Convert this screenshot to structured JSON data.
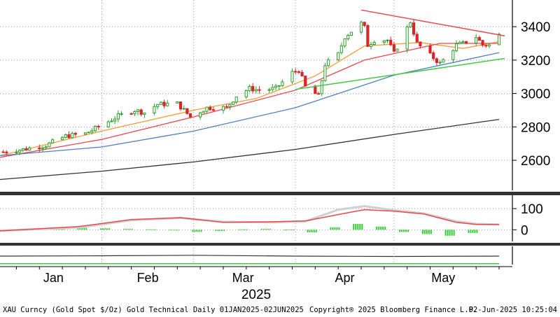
{
  "footer": {
    "source": "XAU Curncy (Gold Spot  $/Oz) Gold Technical  Daily 01JAN2025-02JUN2025",
    "copyright": "Copyright® 2025 Bloomberg Finance L.P.",
    "timestamp": "02-Jun-2025 10:25:04"
  },
  "colors": {
    "candle_up": "#2ca02c",
    "candle_down": "#d62728",
    "ma_fast": "#f39c34",
    "ma_mid": "#e8474f",
    "ma_slow": "#4d7fbf",
    "ma_long": "#333333",
    "trend_red": "#e8474f",
    "trend_green": "#41c84a",
    "macd_line": "#e8474f",
    "macd_signal": "#d0d0d0",
    "hist_green": "#33cc33",
    "panel_border": "#333333"
  },
  "chart_data": [
    {
      "type": "candlestick",
      "x_unit": "date",
      "x_labels": [
        "Jan",
        "Feb",
        "Mar",
        "Apr",
        "May"
      ],
      "x_year": "2025",
      "ylim": [
        2420,
        3560
      ],
      "y_ticks": [
        2600,
        2800,
        3000,
        3200,
        3400
      ],
      "grid": true,
      "y_axis_side": "right",
      "ohlc_anchor_closes": [
        [
          "2025-01-02",
          2650
        ],
        [
          "2025-01-08",
          2665
        ],
        [
          "2025-01-15",
          2690
        ],
        [
          "2025-01-21",
          2745
        ],
        [
          "2025-01-27",
          2760
        ],
        [
          "2025-01-31",
          2800
        ],
        [
          "2025-02-06",
          2865
        ],
        [
          "2025-02-11",
          2900
        ],
        [
          "2025-02-14",
          2885
        ],
        [
          "2025-02-18",
          2935
        ],
        [
          "2025-02-24",
          2940
        ],
        [
          "2025-02-28",
          2860
        ],
        [
          "2025-03-05",
          2915
        ],
        [
          "2025-03-11",
          2915
        ],
        [
          "2025-03-14",
          2985
        ],
        [
          "2025-03-18",
          3030
        ],
        [
          "2025-03-21",
          3020
        ],
        [
          "2025-03-26",
          3030
        ],
        [
          "2025-03-31",
          3125
        ],
        [
          "2025-04-02",
          3140
        ],
        [
          "2025-04-04",
          3040
        ],
        [
          "2025-04-08",
          2985
        ],
        [
          "2025-04-10",
          3175
        ],
        [
          "2025-04-14",
          3235
        ],
        [
          "2025-04-16",
          3340
        ],
        [
          "2025-04-21",
          3420
        ],
        [
          "2025-04-22",
          3395
        ],
        [
          "2025-04-23",
          3290
        ],
        [
          "2025-04-25",
          3320
        ],
        [
          "2025-04-29",
          3320
        ],
        [
          "2025-05-01",
          3240
        ],
        [
          "2025-05-06",
          3430
        ],
        [
          "2025-05-08",
          3300
        ],
        [
          "2025-05-12",
          3230
        ],
        [
          "2025-05-15",
          3180
        ],
        [
          "2025-05-16",
          3200
        ],
        [
          "2025-05-20",
          3290
        ],
        [
          "2025-05-22",
          3300
        ],
        [
          "2025-05-26",
          3340
        ],
        [
          "2025-05-28",
          3290
        ],
        [
          "2025-05-30",
          3290
        ],
        [
          "2025-06-02",
          3350
        ]
      ],
      "moving_averages": [
        {
          "role": "fast",
          "points": [
            [
              "2025-01-01",
              2628
            ],
            [
              "2025-02-01",
              2775
            ],
            [
              "2025-03-01",
              2900
            ],
            [
              "2025-03-20",
              2970
            ],
            [
              "2025-04-07",
              3105
            ],
            [
              "2025-04-22",
              3285
            ],
            [
              "2025-05-09",
              3305
            ],
            [
              "2025-05-22",
              3270
            ],
            [
              "2025-06-02",
              3310
            ]
          ]
        },
        {
          "role": "mid",
          "points": [
            [
              "2025-01-01",
              2618
            ],
            [
              "2025-02-01",
              2725
            ],
            [
              "2025-03-01",
              2860
            ],
            [
              "2025-04-01",
              3020
            ],
            [
              "2025-04-22",
              3200
            ],
            [
              "2025-05-15",
              3300
            ],
            [
              "2025-06-02",
              3300
            ]
          ]
        },
        {
          "role": "slow",
          "points": [
            [
              "2025-01-01",
              2628
            ],
            [
              "2025-02-01",
              2680
            ],
            [
              "2025-03-01",
              2775
            ],
            [
              "2025-04-01",
              2915
            ],
            [
              "2025-05-01",
              3110
            ],
            [
              "2025-06-02",
              3245
            ]
          ]
        },
        {
          "role": "long",
          "points": [
            [
              "2025-01-01",
              2485
            ],
            [
              "2025-02-01",
              2535
            ],
            [
              "2025-03-01",
              2590
            ],
            [
              "2025-04-01",
              2665
            ],
            [
              "2025-05-01",
              2755
            ],
            [
              "2025-06-02",
              2845
            ]
          ]
        }
      ],
      "trendlines": [
        {
          "role": "resistance",
          "points": [
            [
              "2025-04-21",
              3500
            ],
            [
              "2025-06-02",
              3345
            ]
          ]
        },
        {
          "role": "support",
          "points": [
            [
              "2025-04-01",
              3025
            ],
            [
              "2025-06-02",
              3210
            ]
          ]
        }
      ]
    },
    {
      "type": "line",
      "panel": "oscillator",
      "ylim": [
        -55,
        150
      ],
      "y_ticks": [
        0,
        100
      ],
      "grid": true,
      "series": [
        {
          "role": "line",
          "points": [
            [
              "2025-01-01",
              -5
            ],
            [
              "2025-01-25",
              15
            ],
            [
              "2025-02-10",
              48
            ],
            [
              "2025-02-25",
              57
            ],
            [
              "2025-03-10",
              35
            ],
            [
              "2025-03-25",
              38
            ],
            [
              "2025-04-04",
              42
            ],
            [
              "2025-04-14",
              72
            ],
            [
              "2025-04-22",
              95
            ],
            [
              "2025-05-01",
              88
            ],
            [
              "2025-05-10",
              75
            ],
            [
              "2025-05-20",
              35
            ],
            [
              "2025-05-26",
              25
            ],
            [
              "2025-06-02",
              25
            ]
          ]
        },
        {
          "role": "signal",
          "points": [
            [
              "2025-01-01",
              -5
            ],
            [
              "2025-01-25",
              10
            ],
            [
              "2025-02-10",
              45
            ],
            [
              "2025-02-25",
              56
            ],
            [
              "2025-03-10",
              38
            ],
            [
              "2025-03-25",
              35
            ],
            [
              "2025-04-04",
              40
            ],
            [
              "2025-04-14",
              95
            ],
            [
              "2025-04-22",
              112
            ],
            [
              "2025-05-01",
              92
            ],
            [
              "2025-05-10",
              78
            ],
            [
              "2025-05-20",
              40
            ],
            [
              "2025-05-26",
              28
            ],
            [
              "2025-06-02",
              25
            ]
          ]
        }
      ],
      "histogram": [
        [
          "2025-01-05",
          2
        ],
        [
          "2025-01-12",
          5
        ],
        [
          "2025-01-19",
          8
        ],
        [
          "2025-01-26",
          9
        ],
        [
          "2025-02-02",
          7
        ],
        [
          "2025-02-09",
          4
        ],
        [
          "2025-02-16",
          2
        ],
        [
          "2025-02-23",
          -3
        ],
        [
          "2025-03-02",
          -10
        ],
        [
          "2025-03-09",
          -6
        ],
        [
          "2025-03-16",
          2
        ],
        [
          "2025-03-23",
          4
        ],
        [
          "2025-03-30",
          1
        ],
        [
          "2025-04-06",
          -12
        ],
        [
          "2025-04-13",
          12
        ],
        [
          "2025-04-20",
          28
        ],
        [
          "2025-04-27",
          15
        ],
        [
          "2025-05-04",
          -10
        ],
        [
          "2025-05-11",
          -20
        ],
        [
          "2025-05-18",
          -28
        ],
        [
          "2025-05-25",
          -15
        ]
      ]
    },
    {
      "type": "line",
      "panel": "lower",
      "series": [
        {
          "role": "line",
          "points": [
            [
              "2025-01-01",
              0.5
            ],
            [
              "2025-02-01",
              0.52
            ],
            [
              "2025-03-01",
              0.55
            ],
            [
              "2025-04-01",
              0.5
            ],
            [
              "2025-05-01",
              0.48
            ],
            [
              "2025-06-02",
              0.5
            ]
          ]
        },
        {
          "role": "baseline",
          "points": [
            [
              "2025-01-01",
              0.05
            ],
            [
              "2025-06-02",
              0.05
            ]
          ]
        }
      ]
    }
  ]
}
